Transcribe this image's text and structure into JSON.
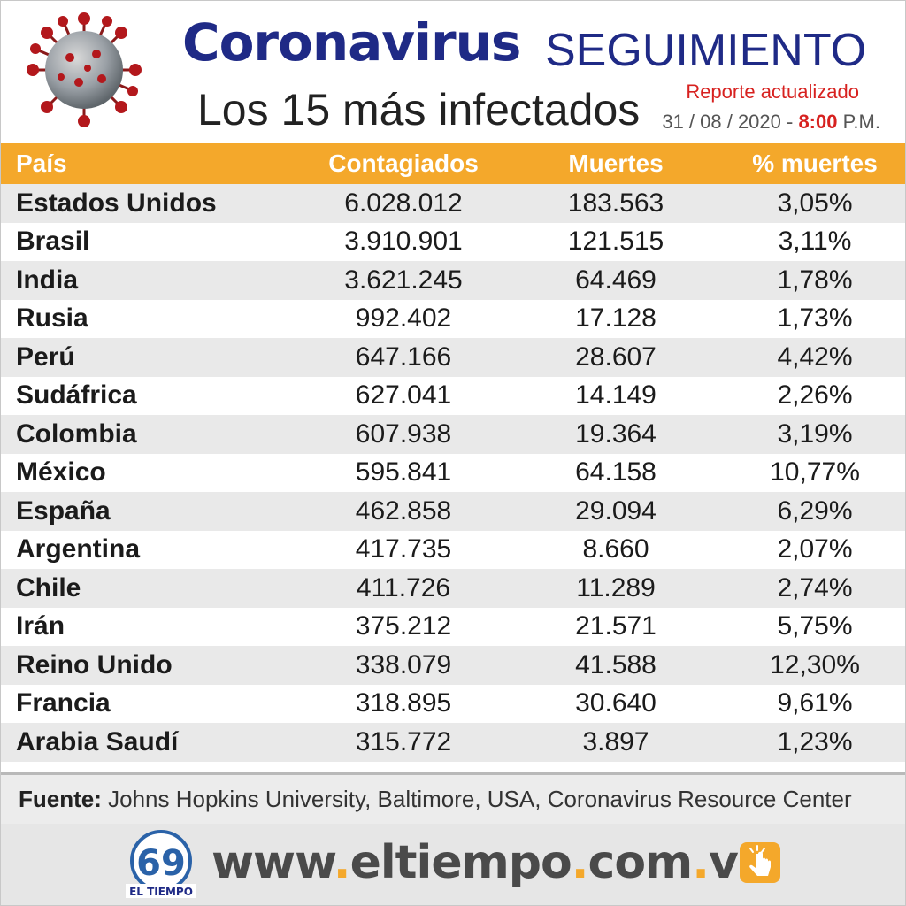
{
  "header": {
    "title_main": "Coronavirus",
    "title_sub": "SEGUIMIENTO",
    "subtitle": "Los 15 más infectados",
    "report_label": "Reporte actualizado",
    "report_date": "31 / 08 / 2020 - ",
    "report_time": "8:00",
    "report_pm": " P.M."
  },
  "table": {
    "headers": [
      "País",
      "Contagiados",
      "Muertes",
      "% muertes"
    ],
    "rows": [
      {
        "pais": "Estados Unidos",
        "contagiados": "6.028.012",
        "muertes": "183.563",
        "pct": "3,05%"
      },
      {
        "pais": "Brasil",
        "contagiados": "3.910.901",
        "muertes": "121.515",
        "pct": "3,11%"
      },
      {
        "pais": "India",
        "contagiados": "3.621.245",
        "muertes": "64.469",
        "pct": "1,78%"
      },
      {
        "pais": "Rusia",
        "contagiados": "992.402",
        "muertes": "17.128",
        "pct": "1,73%"
      },
      {
        "pais": "Perú",
        "contagiados": "647.166",
        "muertes": "28.607",
        "pct": "4,42%"
      },
      {
        "pais": "Sudáfrica",
        "contagiados": "627.041",
        "muertes": "14.149",
        "pct": "2,26%"
      },
      {
        "pais": "Colombia",
        "contagiados": "607.938",
        "muertes": "19.364",
        "pct": "3,19%"
      },
      {
        "pais": "México",
        "contagiados": "595.841",
        "muertes": "64.158",
        "pct": "10,77%"
      },
      {
        "pais": "España",
        "contagiados": "462.858",
        "muertes": "29.094",
        "pct": "6,29%"
      },
      {
        "pais": "Argentina",
        "contagiados": "417.735",
        "muertes": "8.660",
        "pct": "2,07%"
      },
      {
        "pais": "Chile",
        "contagiados": "411.726",
        "muertes": "11.289",
        "pct": "2,74%"
      },
      {
        "pais": "Irán",
        "contagiados": "375.212",
        "muertes": "21.571",
        "pct": "5,75%"
      },
      {
        "pais": "Reino Unido",
        "contagiados": "338.079",
        "muertes": "41.588",
        "pct": "12,30%"
      },
      {
        "pais": "Francia",
        "contagiados": "318.895",
        "muertes": "30.640",
        "pct": "9,61%"
      },
      {
        "pais": "Arabia Saudí",
        "contagiados": "315.772",
        "muertes": "3.897",
        "pct": "1,23%"
      }
    ]
  },
  "footer": {
    "source_label": "Fuente:",
    "source_text": " Johns Hopkins University, Baltimore, USA, Coronavirus Resource Center",
    "url_parts": [
      "www",
      ".",
      "eltiempo",
      ".",
      "com",
      ".",
      "ve"
    ],
    "logo_number": "69",
    "logo_text": "EL TIEMPO"
  },
  "colors": {
    "header_bar": "#f4a82b",
    "title": "#1f2a86",
    "accent_red": "#d7211f"
  },
  "icons": [
    "virus-icon",
    "el-tiempo-logo",
    "hand-pointer-icon"
  ]
}
